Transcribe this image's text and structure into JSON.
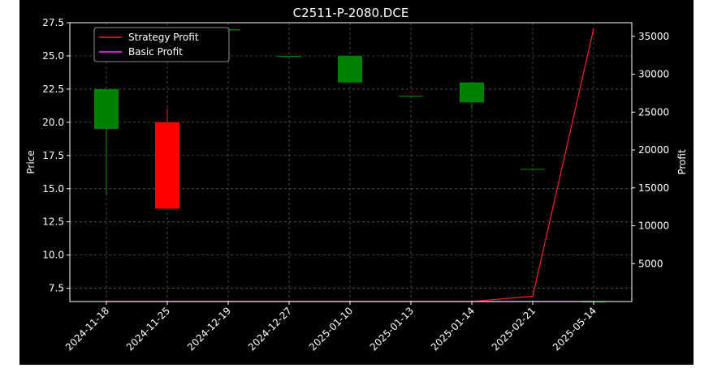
{
  "chart_data": {
    "type": "candlestick",
    "title": "C2511-P-2080.DCE",
    "xlabel": "",
    "ylabel": "Price",
    "y2label": "Profit",
    "categories": [
      "2024-11-18",
      "2024-11-25",
      "2024-12-19",
      "2024-12-27",
      "2025-01-10",
      "2025-01-13",
      "2025-01-14",
      "2025-02-21",
      "2025-05-14"
    ],
    "candles": [
      {
        "date": "2024-11-18",
        "open": 19.5,
        "high": 22.5,
        "low": 14.5,
        "close": 22.5
      },
      {
        "date": "2024-11-25",
        "open": 20.0,
        "high": 21.0,
        "low": 13.5,
        "close": 13.5
      },
      {
        "date": "2024-12-19",
        "open": 27.0,
        "high": 27.0,
        "low": 27.0,
        "close": 27.0
      },
      {
        "date": "2024-12-27",
        "open": 25.0,
        "high": 25.0,
        "low": 25.0,
        "close": 25.0
      },
      {
        "date": "2025-01-10",
        "open": 23.0,
        "high": 25.0,
        "low": 23.0,
        "close": 25.0
      },
      {
        "date": "2025-01-13",
        "open": 22.0,
        "high": 22.0,
        "low": 22.0,
        "close": 22.0
      },
      {
        "date": "2025-01-14",
        "open": 21.5,
        "high": 23.0,
        "low": 21.0,
        "close": 23.0
      },
      {
        "date": "2025-02-21",
        "open": 16.5,
        "high": 16.5,
        "low": 16.5,
        "close": 16.5
      },
      {
        "date": "2025-05-14",
        "open": 6.5,
        "high": 6.5,
        "low": 6.5,
        "close": 6.5
      }
    ],
    "series": [
      {
        "name": "Strategy Profit",
        "color": "#ff2020",
        "values": [
          0,
          0,
          0,
          0,
          0,
          0,
          0,
          700,
          36000
        ]
      },
      {
        "name": "Basic Profit",
        "color": "#ff33ff",
        "values": [
          0,
          0,
          0,
          0,
          0,
          0,
          0,
          0,
          0
        ]
      }
    ],
    "ylim": [
      6.5,
      27.5
    ],
    "yticks": [
      7.5,
      10.0,
      12.5,
      15.0,
      17.5,
      20.0,
      22.5,
      25.0,
      27.5
    ],
    "y2lim": [
      0,
      36800
    ],
    "y2ticks": [
      5000,
      10000,
      15000,
      20000,
      25000,
      30000,
      35000
    ],
    "up_color": "#008000",
    "down_color": "#ff0000",
    "grid": true,
    "legend_position": "top-left"
  }
}
